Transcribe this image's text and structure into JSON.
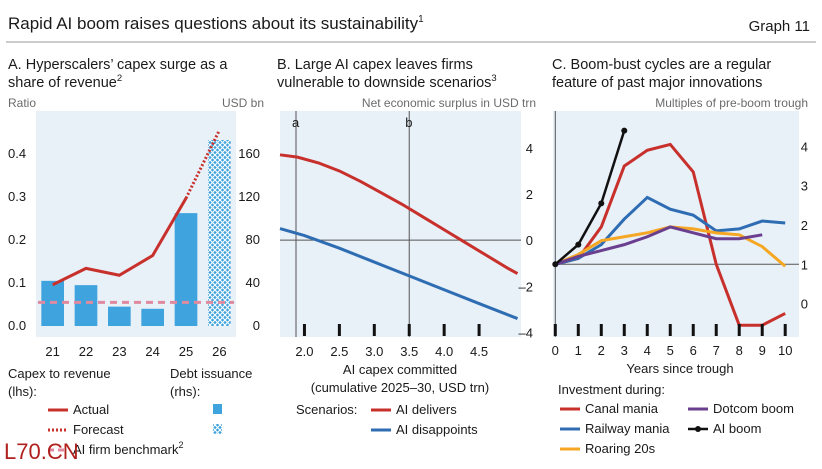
{
  "header": {
    "title": "Rapid AI boom raises questions about its sustainability",
    "title_note": "1",
    "graph_label": "Graph 11"
  },
  "colors": {
    "panel_bg": "#e8f0f8",
    "red": "#c8302c",
    "blue": "#2f6db3",
    "bar_blue": "#3fa3dd",
    "pink_dash": "#e08aa0",
    "purple": "#6b3f8f",
    "orange": "#f5a623",
    "black": "#111111"
  },
  "watermark": "L70.CN",
  "panels": {
    "a": {
      "title_lines": [
        "A. Hyperscalers’ capex surge as a",
        "share of revenue"
      ],
      "title_note": "2",
      "left_unit": "Ratio",
      "right_unit": "USD bn",
      "legend": {
        "group1_lines": [
          "Capex to revenue",
          "(lhs):"
        ],
        "group2_lines": [
          "Debt issuance",
          "(rhs):"
        ],
        "actual": "Actual",
        "forecast": "Forecast",
        "benchmark": "AI firm benchmark",
        "benchmark_note": "2"
      }
    },
    "b": {
      "title_lines": [
        "B. Large AI capex leaves firms",
        "vulnerable to downside scenarios"
      ],
      "title_note": "3",
      "unit": "Net economic surplus in USD trn",
      "marker_a": "a",
      "marker_b": "b",
      "xlabel_lines": [
        "AI capex committed",
        "(cumulative 2025–30, USD trn)"
      ],
      "legend": {
        "label": "Scenarios:",
        "delivers": "AI delivers",
        "disappoints": "AI disappoints"
      }
    },
    "c": {
      "title_lines": [
        "C. Boom-bust cycles are a regular",
        "feature of past major innovations"
      ],
      "unit": "Multiples of pre-boom trough",
      "xlabel": "Years since trough",
      "legend": {
        "heading": "Investment during:",
        "canal": "Canal mania",
        "dotcom": "Dotcom boom",
        "railway": "Railway mania",
        "ai": "AI boom",
        "roaring": "Roaring 20s"
      }
    }
  },
  "chart_data": [
    {
      "type": "bar",
      "categories": [
        "21",
        "22",
        "23",
        "24",
        "25",
        "26"
      ],
      "left_axis": {
        "label": "Ratio",
        "ylim": [
          0,
          0.5
        ],
        "ticks": [
          0.0,
          0.1,
          0.2,
          0.3,
          0.4
        ],
        "tick_labels": [
          "0.0",
          "0.1",
          "0.2",
          "0.3",
          "0.4"
        ]
      },
      "right_axis": {
        "label": "USD bn",
        "ylim": [
          0,
          200
        ],
        "ticks": [
          0,
          40,
          80,
          120,
          160
        ],
        "tick_labels": [
          "0",
          "40",
          "80",
          "120",
          "160"
        ]
      },
      "series": [
        {
          "name": "Debt issuance",
          "axis": "rhs",
          "kind": "bar",
          "values": [
            42,
            38,
            18,
            16,
            105,
            null
          ]
        },
        {
          "name": "Debt issuance (forecast)",
          "axis": "rhs",
          "kind": "bar-hatched",
          "values": [
            null,
            null,
            null,
            null,
            null,
            173
          ]
        },
        {
          "name": "Actual",
          "axis": "lhs",
          "kind": "line",
          "values": [
            0.096,
            0.134,
            0.118,
            0.164,
            0.297,
            null
          ]
        },
        {
          "name": "Forecast",
          "axis": "lhs",
          "kind": "line-dotted",
          "values": [
            null,
            null,
            null,
            null,
            0.297,
            0.455
          ]
        },
        {
          "name": "AI firm benchmark",
          "axis": "lhs",
          "kind": "line-dashed",
          "values": [
            0.055,
            0.055,
            0.055,
            0.055,
            0.055,
            0.055
          ]
        }
      ]
    },
    {
      "type": "line",
      "xlim": [
        1.65,
        5.1
      ],
      "ylim": [
        -4.2,
        5.6
      ],
      "xticks": [
        2.0,
        2.5,
        3.0,
        3.5,
        4.0,
        4.5
      ],
      "xtick_labels": [
        "2.0",
        "2.5",
        "3.0",
        "3.5",
        "4.0",
        "4.5"
      ],
      "yticks": [
        4,
        2,
        0,
        -2,
        -4
      ],
      "ytick_labels": [
        "4",
        "2",
        "0",
        "–2",
        "–4"
      ],
      "vlines": [
        {
          "label": "a",
          "x": 1.65
        },
        {
          "label": "b",
          "x": 3.5
        }
      ],
      "series": [
        {
          "name": "AI delivers",
          "x": [
            1.65,
            1.9,
            2.2,
            2.5,
            2.8,
            3.1,
            3.4,
            3.7,
            4.0,
            4.3,
            4.6,
            4.9,
            5.05
          ],
          "y": [
            3.7,
            3.6,
            3.35,
            3.0,
            2.55,
            2.05,
            1.55,
            1.0,
            0.45,
            -0.1,
            -0.65,
            -1.2,
            -1.45
          ]
        },
        {
          "name": "AI disappoints",
          "x": [
            1.65,
            2.0,
            2.5,
            3.0,
            3.5,
            4.0,
            4.5,
            5.05
          ],
          "y": [
            0.5,
            0.2,
            -0.35,
            -0.95,
            -1.55,
            -2.15,
            -2.75,
            -3.4
          ]
        }
      ]
    },
    {
      "type": "line",
      "xlim": [
        -0.1,
        10.6
      ],
      "ylim": [
        -0.85,
        4.9
      ],
      "xticks": [
        0,
        1,
        2,
        3,
        4,
        5,
        6,
        7,
        8,
        9,
        10
      ],
      "xtick_labels": [
        "0",
        "1",
        "2",
        "3",
        "4",
        "5",
        "6",
        "7",
        "8",
        "9",
        "10"
      ],
      "yticks": [
        4,
        3,
        2,
        1,
        0
      ],
      "ytick_labels": [
        "4",
        "3",
        "2",
        "1",
        "0"
      ],
      "baseline": 1,
      "series": [
        {
          "name": "Canal mania",
          "x": [
            0,
            1,
            2,
            3,
            4,
            5,
            6,
            7,
            8,
            9,
            10
          ],
          "y": [
            1.0,
            1.15,
            1.95,
            3.5,
            3.9,
            4.05,
            3.35,
            1.0,
            -0.55,
            -0.55,
            -0.25
          ]
        },
        {
          "name": "Railway mania",
          "x": [
            0,
            1,
            2,
            3,
            4,
            5,
            6,
            7,
            8,
            9,
            10
          ],
          "y": [
            1.0,
            1.15,
            1.5,
            2.15,
            2.7,
            2.4,
            2.25,
            1.85,
            1.9,
            2.1,
            2.05
          ]
        },
        {
          "name": "Roaring 20s",
          "x": [
            0,
            1,
            2,
            3,
            4,
            5,
            6,
            7,
            8,
            9,
            10
          ],
          "y": [
            1.0,
            1.25,
            1.6,
            1.7,
            1.8,
            1.95,
            1.9,
            1.8,
            1.75,
            1.45,
            0.95
          ]
        },
        {
          "name": "Dotcom boom",
          "x": [
            0,
            1,
            2,
            3,
            4,
            5,
            6,
            7,
            8,
            9
          ],
          "y": [
            1.0,
            1.2,
            1.35,
            1.5,
            1.7,
            1.95,
            1.8,
            1.65,
            1.65,
            1.75
          ]
        },
        {
          "name": "AI boom",
          "x": [
            0,
            1,
            2,
            3
          ],
          "y": [
            1.0,
            1.5,
            2.55,
            4.4
          ]
        }
      ]
    }
  ]
}
